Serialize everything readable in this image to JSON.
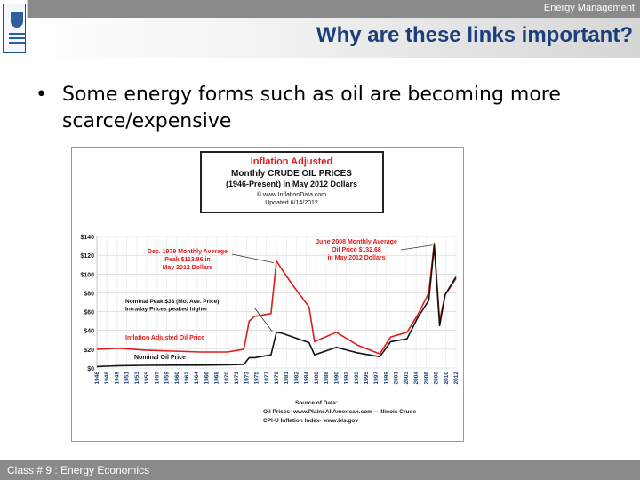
{
  "header": {
    "section_label": "Energy Management",
    "slide_title": "Why are these links important?"
  },
  "logo": {
    "name": "university-logo"
  },
  "bullet": {
    "text": "Some energy forms such as oil are becoming more scarce/expensive"
  },
  "footer": {
    "label": "Class # 9 : Energy Economics"
  },
  "chart_data": {
    "type": "line",
    "title_lines": [
      "Inflation Adjusted",
      "Monthly CRUDE OIL PRICES",
      "(1946-Present) In May 2012 Dollars",
      "© www.InflationData.com",
      "Updated 6/14/2012"
    ],
    "x": [
      1946,
      1950,
      1955,
      1960,
      1965,
      1970,
      1973,
      1974,
      1975,
      1978,
      1979,
      1980,
      1982,
      1985,
      1986,
      1990,
      1994,
      1998,
      2000,
      2003,
      2005,
      2007,
      2008,
      2009,
      2010,
      2012
    ],
    "series": [
      {
        "name": "Inflation Adjusted Oil Price",
        "color": "#e11b1b",
        "values": [
          20,
          21,
          19,
          18,
          17,
          17,
          20,
          50,
          55,
          58,
          113.86,
          105,
          88,
          65,
          28,
          38,
          24,
          15,
          33,
          38,
          57,
          80,
          132.68,
          50,
          78,
          95
        ]
      },
      {
        "name": "Nominal Oil Price",
        "color": "#111111",
        "values": [
          1.5,
          2.5,
          2.8,
          3.0,
          3.0,
          3.4,
          3.8,
          11,
          11,
          14,
          38,
          37,
          33,
          27,
          14,
          22,
          16,
          12,
          28,
          31,
          54,
          72,
          130,
          45,
          78,
          97
        ]
      }
    ],
    "x_ticks": [
      "1946",
      "1948",
      "1949",
      "1951",
      "1953",
      "1955",
      "1957",
      "1959",
      "1960",
      "1962",
      "1964",
      "1966",
      "1968",
      "1970",
      "1971",
      "1973",
      "1975",
      "1977",
      "1979",
      "1981",
      "1982",
      "1984",
      "1986",
      "1988",
      "1990",
      "1992",
      "1993",
      "1995",
      "1997",
      "1999",
      "2001",
      "2003",
      "2004",
      "2006",
      "2008",
      "2010",
      "2012"
    ],
    "y_ticks": [
      "$0",
      "$20",
      "$40",
      "$60",
      "$80",
      "$100",
      "$120",
      "$140"
    ],
    "ylim": [
      0,
      140
    ],
    "annotations": [
      {
        "text": [
          "Dec. 1979 Monthly Average",
          "Peak $113.86 in",
          "May 2012 Dollars"
        ],
        "color": "#e11b1b"
      },
      {
        "text": [
          "June 2008 Monthly Average",
          "Oil Price $132.68",
          "in May 2012 Dollars"
        ],
        "color": "#e11b1b"
      },
      {
        "text": [
          "Nominal Peak $38 (Mo. Ave. Price)",
          "Intraday Prices peaked higher"
        ],
        "color": "#111111"
      },
      {
        "text": [
          "Inflation Adjusted Oil Price"
        ],
        "color": "#e11b1b"
      },
      {
        "text": [
          "Nominal Oil Price"
        ],
        "color": "#111111"
      }
    ],
    "source_lines": [
      "Source of Data:",
      "Oil Prices- www.PlainsAllAmerican.com -- Illinois Crude",
      "CPI-U Inflation Index- www.bls.gov"
    ]
  }
}
